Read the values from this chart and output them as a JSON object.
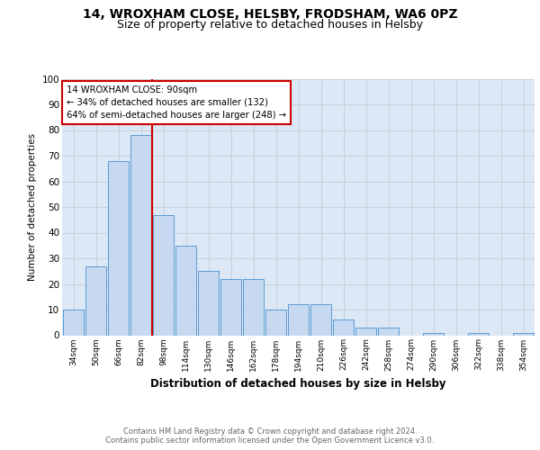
{
  "title": "14, WROXHAM CLOSE, HELSBY, FRODSHAM, WA6 0PZ",
  "subtitle": "Size of property relative to detached houses in Helsby",
  "xlabel": "Distribution of detached houses by size in Helsby",
  "ylabel": "Number of detached properties",
  "categories": [
    "34sqm",
    "50sqm",
    "66sqm",
    "82sqm",
    "98sqm",
    "114sqm",
    "130sqm",
    "146sqm",
    "162sqm",
    "178sqm",
    "194sqm",
    "210sqm",
    "226sqm",
    "242sqm",
    "258sqm",
    "274sqm",
    "290sqm",
    "306sqm",
    "322sqm",
    "338sqm",
    "354sqm"
  ],
  "values": [
    10,
    27,
    68,
    78,
    47,
    35,
    25,
    22,
    22,
    10,
    12,
    12,
    6,
    3,
    3,
    0,
    1,
    0,
    1,
    0,
    1
  ],
  "bar_color": "#c6d9f0",
  "bar_edge_color": "#5b9bd5",
  "vline_x_index": 4,
  "vline_color": "#cc0000",
  "annotation_box_text": "14 WROXHAM CLOSE: 90sqm\n← 34% of detached houses are smaller (132)\n64% of semi-detached houses are larger (248) →",
  "annotation_box_color": "#cc0000",
  "annotation_box_bg": "#ffffff",
  "ylim": [
    0,
    100
  ],
  "yticks": [
    0,
    10,
    20,
    30,
    40,
    50,
    60,
    70,
    80,
    90,
    100
  ],
  "grid_color": "#c8d0dc",
  "background_color": "#dce8f5",
  "footer_text": "Contains HM Land Registry data © Crown copyright and database right 2024.\nContains public sector information licensed under the Open Government Licence v3.0.",
  "title_fontsize": 10,
  "subtitle_fontsize": 9,
  "footer_fontsize": 6,
  "footer_color": "#666666"
}
